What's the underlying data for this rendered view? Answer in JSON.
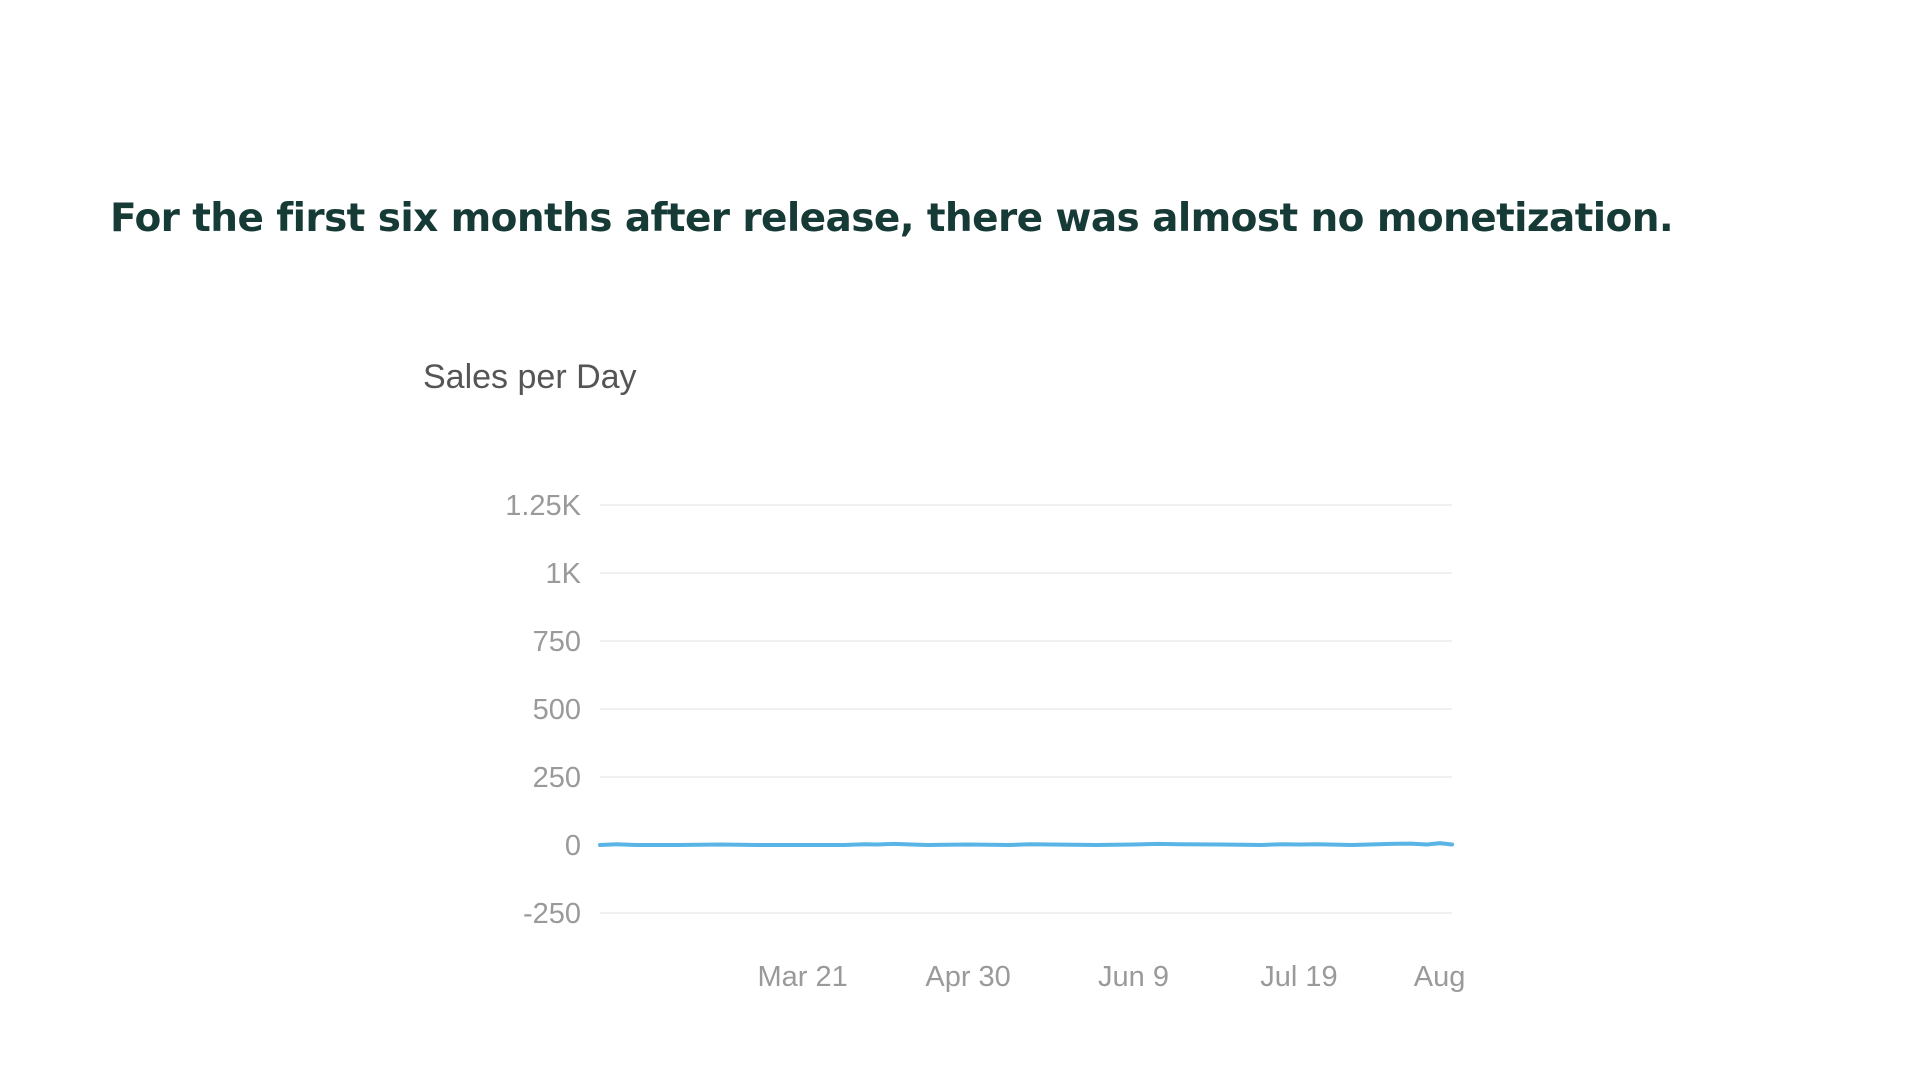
{
  "heading": "For the first six months after release, there was almost no monetization.",
  "chart_data": {
    "type": "line",
    "title": "Sales per Day",
    "xlabel": "",
    "ylabel": "",
    "ylim": [
      -250,
      1250
    ],
    "xlim": [
      "2024-02-01",
      "2024-08-25"
    ],
    "y_ticks": [
      {
        "value": 1250,
        "label": "1.25K"
      },
      {
        "value": 1000,
        "label": "1K"
      },
      {
        "value": 750,
        "label": "750"
      },
      {
        "value": 500,
        "label": "500"
      },
      {
        "value": 250,
        "label": "250"
      },
      {
        "value": 0,
        "label": "0"
      },
      {
        "value": -250,
        "label": "-250"
      }
    ],
    "x_ticks": [
      {
        "date": "2024-03-21",
        "label": "Mar 21"
      },
      {
        "date": "2024-04-30",
        "label": "Apr 30"
      },
      {
        "date": "2024-06-09",
        "label": "Jun 9"
      },
      {
        "date": "2024-07-19",
        "label": "Jul 19"
      },
      {
        "date": "2024-08-22",
        "label": "Aug"
      }
    ],
    "grid": true,
    "legend": "none",
    "series": [
      {
        "color": "#5ab4e6",
        "points": [
          [
            "2024-02-01",
            0
          ],
          [
            "2024-02-05",
            3
          ],
          [
            "2024-02-10",
            0
          ],
          [
            "2024-02-20",
            0
          ],
          [
            "2024-03-01",
            2
          ],
          [
            "2024-03-10",
            0
          ],
          [
            "2024-03-20",
            0
          ],
          [
            "2024-03-31",
            0
          ],
          [
            "2024-04-05",
            3
          ],
          [
            "2024-04-08",
            2
          ],
          [
            "2024-04-12",
            4
          ],
          [
            "2024-04-20",
            0
          ],
          [
            "2024-04-30",
            2
          ],
          [
            "2024-05-10",
            0
          ],
          [
            "2024-05-15",
            3
          ],
          [
            "2024-05-20",
            2
          ],
          [
            "2024-05-31",
            0
          ],
          [
            "2024-06-09",
            2
          ],
          [
            "2024-06-15",
            4
          ],
          [
            "2024-06-20",
            3
          ],
          [
            "2024-06-30",
            2
          ],
          [
            "2024-07-10",
            0
          ],
          [
            "2024-07-15",
            3
          ],
          [
            "2024-07-19",
            2
          ],
          [
            "2024-07-23",
            3
          ],
          [
            "2024-08-01",
            0
          ],
          [
            "2024-08-10",
            4
          ],
          [
            "2024-08-15",
            5
          ],
          [
            "2024-08-19",
            2
          ],
          [
            "2024-08-22",
            7
          ],
          [
            "2024-08-25",
            2
          ]
        ]
      }
    ]
  }
}
